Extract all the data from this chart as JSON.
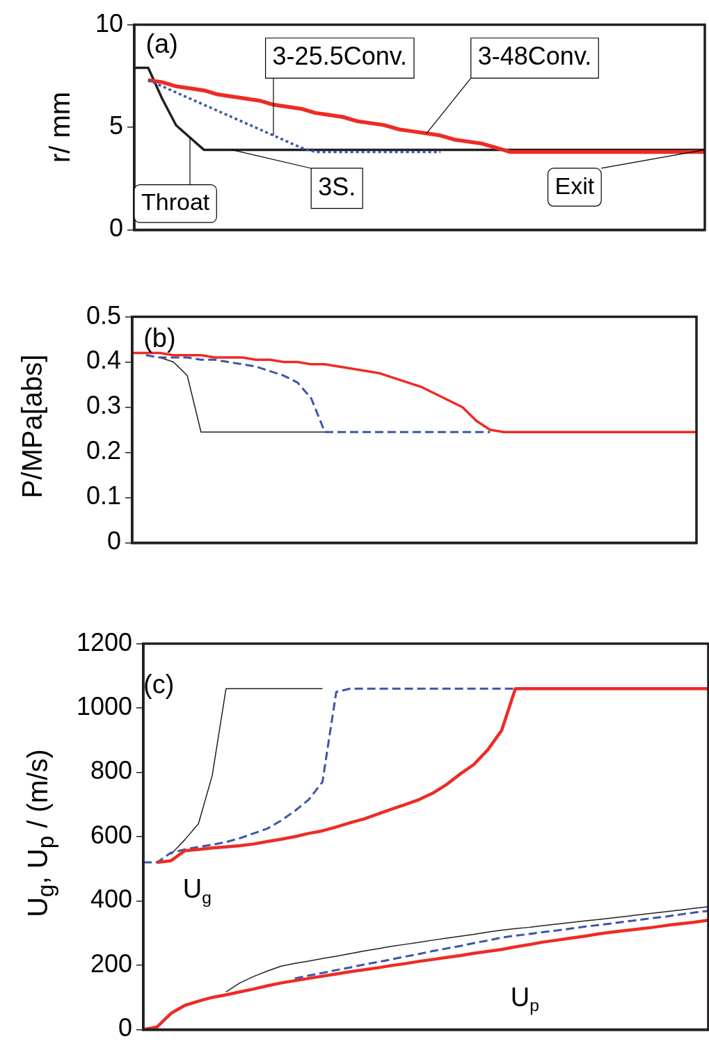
{
  "chart_data": [
    {
      "type": "line",
      "categories": [
        null,
        null,
        null,
        null,
        null,
        null,
        null,
        null,
        null,
        null,
        null,
        null,
        null,
        null,
        null,
        null,
        null,
        null,
        null,
        null,
        null,
        null,
        null,
        null,
        null,
        null,
        null,
        null,
        null,
        null,
        null,
        null,
        null,
        null,
        null,
        null,
        null,
        null,
        null,
        null,
        null,
        null
      ],
      "ylabel": "r/  mm",
      "ylim": [
        0,
        10
      ],
      "yticks": [
        0,
        5,
        10
      ],
      "grid": false,
      "legend": false,
      "tick_labels": "y",
      "marker": "none",
      "annotations": [
        "(a)",
        "Throat",
        "Exit"
      ],
      "series": [
        {
          "name": "3S.",
          "color": "#231f20",
          "line_style": "solid",
          "values": [
            7.9,
            7.9,
            6.4,
            5.1,
            4.5,
            3.9,
            3.9,
            3.9,
            3.9,
            3.9,
            3.9,
            3.9,
            3.9,
            3.9,
            3.9,
            3.9,
            3.9,
            3.9,
            3.9,
            3.9,
            3.9,
            3.9,
            3.9,
            3.9,
            3.9,
            3.9,
            3.9,
            3.9,
            3.9,
            3.9,
            3.9,
            3.9,
            3.9,
            3.9,
            3.9,
            3.9,
            3.9,
            3.9,
            3.9,
            3.9,
            3.9,
            3.9
          ]
        },
        {
          "name": "3-48Conv.",
          "color": "#ee2b24",
          "line_style": "solid",
          "values": [
            null,
            7.3,
            7.2,
            7.0,
            6.9,
            6.8,
            6.6,
            6.5,
            6.4,
            6.3,
            6.1,
            6.0,
            5.9,
            5.7,
            5.6,
            5.5,
            5.3,
            5.2,
            5.1,
            4.9,
            4.8,
            4.7,
            4.6,
            4.4,
            4.3,
            4.2,
            4.0,
            3.8,
            3.8,
            3.8,
            3.8,
            3.8,
            3.8,
            3.8,
            3.8,
            3.8,
            3.8,
            3.8,
            3.8,
            3.8,
            3.8,
            3.8
          ]
        },
        {
          "name": "3-25.5Conv.",
          "color": "#3a56a8",
          "line_style": "dotted",
          "values": [
            null,
            7.3,
            7.0,
            6.7,
            6.4,
            6.1,
            5.8,
            5.5,
            5.2,
            4.9,
            4.6,
            4.3,
            4.0,
            3.8,
            3.8,
            3.8,
            3.8,
            3.8,
            3.8,
            3.8,
            3.8,
            3.8,
            3.8,
            null,
            null,
            null,
            null,
            null,
            null,
            null,
            null,
            null,
            null,
            null,
            null,
            null,
            null,
            null,
            null,
            null,
            null,
            null
          ]
        }
      ]
    },
    {
      "type": "line",
      "categories": [
        null,
        null,
        null,
        null,
        null,
        null,
        null,
        null,
        null,
        null,
        null,
        null,
        null,
        null,
        null,
        null,
        null,
        null,
        null,
        null,
        null,
        null,
        null,
        null,
        null,
        null,
        null,
        null,
        null,
        null,
        null,
        null,
        null,
        null,
        null,
        null,
        null,
        null,
        null,
        null,
        null,
        null
      ],
      "ylabel": "P/MPa[abs]",
      "ylim": [
        0,
        0.5
      ],
      "yticks": [
        0,
        0.1,
        0.2,
        0.3,
        0.4,
        0.5
      ],
      "grid": false,
      "legend": false,
      "tick_labels": "y",
      "marker": "none",
      "annotations": [
        "(b)"
      ],
      "series": [
        {
          "color": "#231f20",
          "line_style": "solid",
          "values": [
            null,
            null,
            0.41,
            0.4,
            0.37,
            0.245,
            0.245,
            0.245,
            0.245,
            0.245,
            0.245,
            0.245,
            0.245,
            0.245,
            0.245,
            null,
            null,
            null,
            null,
            null,
            null,
            null,
            null,
            null,
            null,
            null,
            null,
            null,
            null,
            null,
            null,
            null,
            null,
            null,
            null,
            null,
            null,
            null,
            null,
            null,
            null,
            null
          ]
        },
        {
          "color": "#3a56a8",
          "line_style": "dashed",
          "values": [
            null,
            0.415,
            0.41,
            0.41,
            0.41,
            0.405,
            0.405,
            0.4,
            0.395,
            0.39,
            0.38,
            0.37,
            0.355,
            0.32,
            0.245,
            0.245,
            0.245,
            0.245,
            0.245,
            0.245,
            0.245,
            0.245,
            0.245,
            0.245,
            0.245,
            0.245,
            0.245,
            null,
            null,
            null,
            null,
            null,
            null,
            null,
            null,
            null,
            null,
            null,
            null,
            null,
            null,
            null
          ]
        },
        {
          "color": "#ee2b24",
          "line_style": "solid",
          "values": [
            0.42,
            0.42,
            0.42,
            0.415,
            0.415,
            0.415,
            0.41,
            0.41,
            0.41,
            0.405,
            0.405,
            0.4,
            0.4,
            0.395,
            0.395,
            0.39,
            0.385,
            0.38,
            0.375,
            0.365,
            0.355,
            0.345,
            0.33,
            0.315,
            0.3,
            0.27,
            0.25,
            0.245,
            0.245,
            0.245,
            0.245,
            0.245,
            0.245,
            0.245,
            0.245,
            0.245,
            0.245,
            0.245,
            0.245,
            0.245,
            0.245,
            0.245
          ]
        }
      ]
    },
    {
      "type": "line",
      "categories": [
        null,
        null,
        null,
        null,
        null,
        null,
        null,
        null,
        null,
        null,
        null,
        null,
        null,
        null,
        null,
        null,
        null,
        null,
        null,
        null,
        null,
        null,
        null,
        null,
        null,
        null,
        null,
        null,
        null,
        null,
        null,
        null,
        null,
        null,
        null,
        null,
        null,
        null,
        null,
        null,
        null,
        null
      ],
      "ylabel": "U$_{g}$, U$_{p}$ / (m/s)",
      "ylim": [
        0,
        1200
      ],
      "yticks": [
        0,
        200,
        400,
        600,
        800,
        1000,
        1200
      ],
      "grid": false,
      "legend": false,
      "tick_labels": "y",
      "marker": "none",
      "annotations": [
        "(c)",
        "U$_{g}$",
        "U$_{p}$"
      ],
      "series": [
        {
          "color": "#231f20",
          "line_style": "solid",
          "values": [
            null,
            null,
            545,
            590,
            640,
            790,
            1060,
            1060,
            1060,
            1060,
            1060,
            1060,
            1060,
            1060,
            null,
            null,
            null,
            null,
            null,
            null,
            null,
            null,
            null,
            null,
            null,
            null,
            null,
            null,
            null,
            null,
            null,
            null,
            null,
            null,
            null,
            null,
            null,
            null,
            null,
            null,
            null,
            null
          ]
        },
        {
          "color": "#3a56a8",
          "line_style": "dashed",
          "values": [
            520,
            520,
            550,
            560,
            568,
            575,
            583,
            595,
            610,
            625,
            650,
            680,
            715,
            770,
            1050,
            1060,
            1060,
            1060,
            1060,
            1060,
            1060,
            1060,
            1060,
            1060,
            1060,
            1060,
            1060,
            1060,
            null,
            null,
            null,
            null,
            null,
            null,
            null,
            null,
            null,
            null,
            null,
            null,
            null,
            null
          ]
        },
        {
          "color": "#ee2b24",
          "line_style": "solid",
          "values": [
            null,
            520,
            525,
            556,
            560,
            565,
            568,
            572,
            577,
            585,
            592,
            600,
            610,
            618,
            630,
            643,
            655,
            670,
            685,
            700,
            715,
            735,
            762,
            795,
            825,
            870,
            930,
            1060,
            1060,
            1060,
            1060,
            1060,
            1060,
            1060,
            1060,
            1060,
            1060,
            1060,
            1060,
            1060,
            1060,
            1060
          ]
        },
        {
          "color": "#231f20",
          "line_style": "solid",
          "values": [
            null,
            null,
            null,
            null,
            null,
            null,
            117,
            145,
            165,
            182,
            197,
            206,
            213,
            221,
            228,
            236,
            244,
            251,
            259,
            265,
            271,
            278,
            284,
            290,
            296,
            303,
            309,
            314,
            318,
            323,
            328,
            333,
            338,
            342,
            347,
            352,
            357,
            362,
            367,
            372,
            377,
            382
          ]
        },
        {
          "color": "#3a56a8",
          "line_style": "dashed",
          "values": [
            null,
            null,
            null,
            null,
            null,
            null,
            null,
            null,
            null,
            null,
            null,
            159,
            168,
            176,
            185,
            193,
            202,
            210,
            218,
            227,
            235,
            244,
            252,
            260,
            269,
            277,
            286,
            292,
            297,
            303,
            308,
            314,
            320,
            325,
            330,
            336,
            341,
            347,
            352,
            358,
            364,
            369
          ]
        },
        {
          "color": "#ee2b24",
          "line_style": "solid",
          "values": [
            0,
            8,
            50,
            75,
            88,
            100,
            108,
            117,
            126,
            136,
            145,
            152,
            159,
            166,
            173,
            180,
            186,
            192,
            199,
            205,
            212,
            218,
            224,
            230,
            237,
            243,
            249,
            257,
            264,
            272,
            278,
            284,
            290,
            297,
            303,
            308,
            313,
            318,
            324,
            329,
            334,
            340
          ]
        }
      ]
    }
  ]
}
